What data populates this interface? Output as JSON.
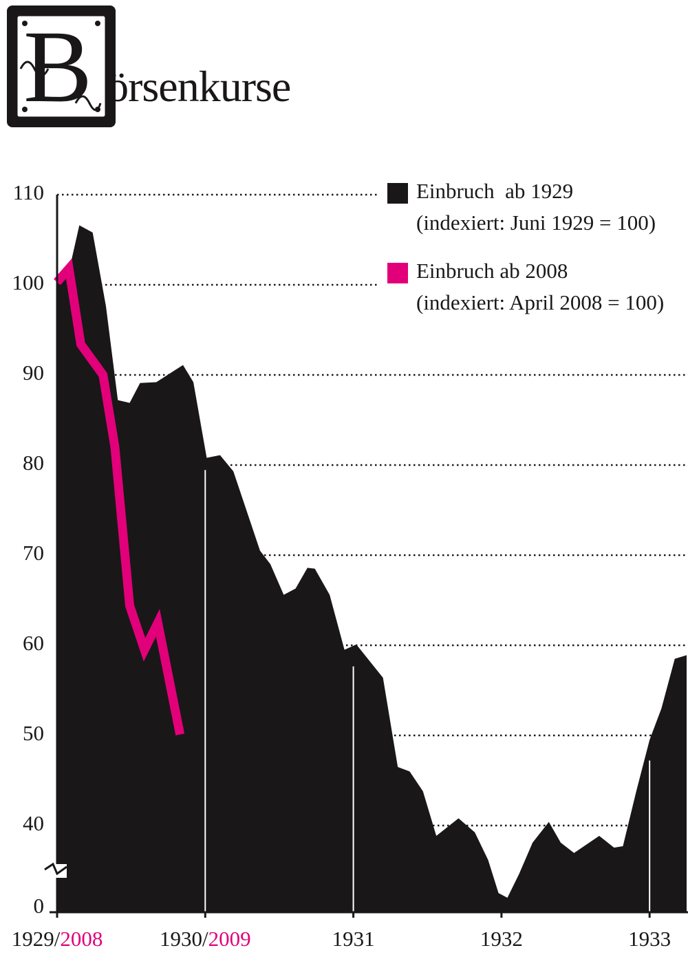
{
  "chart_data": {
    "type": "area",
    "title": "Börsenkurse",
    "xlim": [
      1929,
      1933.25
    ],
    "xticks": [
      {
        "value": 1929,
        "label": "1929/"
      },
      {
        "value": 1930,
        "label": "1930/"
      },
      1931,
      1932,
      1933
    ],
    "x2lim": [
      2008,
      2012.25
    ],
    "x2ticks": [
      2008,
      2009
    ],
    "x2_color": "#e2007a",
    "ylim": [
      0,
      110
    ],
    "yticks": [
      0,
      40,
      50,
      60,
      70,
      80,
      90,
      100,
      110
    ],
    "y_break": true,
    "grid": true,
    "legend": "upper right",
    "series": [
      {
        "name": "Einbruch  ab 1929",
        "description": "(indexiert: Juni 1929 = 100)",
        "color": "#1a1718",
        "style": "area",
        "x": [
          1929.0,
          1929.08,
          1929.15,
          1929.24,
          1929.33,
          1929.41,
          1929.49,
          1929.56,
          1929.67,
          1929.85,
          1929.92,
          1930.01,
          1930.1,
          1930.19,
          1930.37,
          1930.44,
          1930.53,
          1930.61,
          1930.69,
          1930.74,
          1930.84,
          1930.94,
          1931.02,
          1931.2,
          1931.3,
          1931.38,
          1931.47,
          1931.56,
          1931.71,
          1931.82,
          1931.91,
          1931.98,
          1932.04,
          1932.12,
          1932.21,
          1932.32,
          1932.4,
          1932.49,
          1932.66,
          1932.76,
          1932.82,
          1932.91,
          1933.0,
          1933.08,
          1933.17,
          1933.25
        ],
        "values": [
          100,
          101.5,
          106.6,
          105.8,
          97.6,
          87.2,
          86.9,
          89.1,
          89.2,
          91.1,
          89.2,
          80.8,
          81.1,
          79.3,
          70.5,
          69.0,
          65.6,
          66.3,
          68.6,
          68.5,
          65.6,
          59.5,
          60.1,
          56.4,
          46.5,
          46.0,
          43.8,
          35,
          40.8,
          36.7,
          23.3,
          7.3,
          5,
          16.7,
          31.7,
          40.4,
          31.7,
          26.7,
          35,
          29.3,
          30,
          43.8,
          49.5,
          53,
          58.5,
          58.9
        ]
      },
      {
        "name": "Einbruch ab 2008",
        "description": "(indexiert: April 2008 = 100)",
        "color": "#e2007a",
        "style": "line",
        "axis": "x2",
        "x": [
          2008.0,
          2008.08,
          2008.16,
          2008.31,
          2008.39,
          2008.49,
          2008.59,
          2008.68,
          2008.83
        ],
        "values": [
          100.3,
          101.8,
          93.4,
          90,
          82,
          64.4,
          59.5,
          62.5,
          50.1
        ]
      }
    ]
  }
}
